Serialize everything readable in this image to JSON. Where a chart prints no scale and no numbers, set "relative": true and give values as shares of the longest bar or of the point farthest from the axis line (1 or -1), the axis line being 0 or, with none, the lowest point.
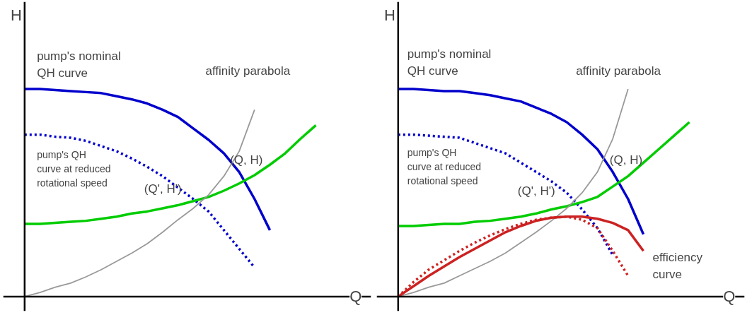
{
  "chart_data": [
    {
      "type": "line",
      "relative": true,
      "xlabel": "Q",
      "ylabel": "H",
      "grid": false,
      "tick_labels": false,
      "marker": "none",
      "categories": [
        null,
        null,
        null,
        null,
        null,
        null,
        null,
        null,
        null,
        null,
        null,
        null,
        null,
        null,
        null,
        null,
        null,
        null,
        null,
        null,
        null
      ],
      "series": [
        {
          "color": "#0000cc",
          "line_style": "solid",
          "values": [
            1,
            1,
            0.995,
            0.99,
            0.985,
            0.98,
            0.965,
            0.95,
            0.93,
            0.9,
            0.865,
            0.81,
            0.755,
            0.69,
            0.6,
            0.47,
            0.32,
            null,
            null,
            null,
            null
          ]
        },
        {
          "color": "#0000cc",
          "line_style": "dotted",
          "values": [
            0.78,
            0.78,
            0.77,
            0.765,
            0.75,
            0.725,
            0.7,
            0.665,
            0.625,
            0.58,
            0.525,
            0.47,
            0.41,
            0.32,
            0.23,
            0.14,
            null,
            null,
            null,
            null,
            null
          ]
        },
        {
          "color": "#00cc00",
          "line_style": "solid",
          "values": [
            0.35,
            0.35,
            0.355,
            0.36,
            0.365,
            0.375,
            0.385,
            0.4,
            0.41,
            0.425,
            0.44,
            0.46,
            0.48,
            0.51,
            0.545,
            0.585,
            0.635,
            0.69,
            0.76,
            0.825,
            null
          ]
        },
        {
          "color": "#999999",
          "line_style": "solid",
          "values": [
            0,
            0.02,
            0.045,
            0.065,
            0.095,
            0.13,
            0.17,
            0.21,
            0.255,
            0.31,
            0.37,
            0.425,
            0.49,
            0.58,
            0.7,
            0.9,
            null,
            null,
            null,
            null,
            null
          ]
        }
      ],
      "annotations": [
        "pump's nominal\nQH curve",
        "affinity parabola",
        "pump's QH\ncurve at reduced\nrotational speed",
        "(Q, H)",
        "(Q', H')"
      ]
    },
    {
      "type": "line",
      "relative": true,
      "xlabel": "Q",
      "ylabel": "H",
      "grid": false,
      "tick_labels": false,
      "marker": "none",
      "categories": [
        null,
        null,
        null,
        null,
        null,
        null,
        null,
        null,
        null,
        null,
        null,
        null,
        null,
        null,
        null,
        null,
        null,
        null,
        null,
        null,
        null
      ],
      "series": [
        {
          "color": "#0000cc",
          "line_style": "solid",
          "values": [
            1,
            1,
            0.995,
            0.99,
            0.99,
            0.98,
            0.97,
            0.955,
            0.94,
            0.91,
            0.88,
            0.84,
            0.78,
            0.71,
            0.6,
            0.47,
            0.3,
            null,
            null,
            null,
            null
          ]
        },
        {
          "color": "#0000cc",
          "line_style": "dotted",
          "values": [
            0.78,
            0.78,
            0.775,
            0.77,
            0.765,
            0.74,
            0.715,
            0.69,
            0.645,
            0.6,
            0.555,
            0.5,
            0.42,
            0.33,
            0.2,
            null,
            null,
            null,
            null,
            null,
            null
          ]
        },
        {
          "color": "#00cc00",
          "line_style": "solid",
          "values": [
            0.34,
            0.34,
            0.345,
            0.35,
            0.35,
            0.36,
            0.365,
            0.375,
            0.385,
            0.4,
            0.42,
            0.435,
            0.455,
            0.48,
            0.53,
            0.58,
            0.645,
            0.71,
            0.775,
            0.84,
            null
          ]
        },
        {
          "color": "#999999",
          "line_style": "solid",
          "values": [
            0,
            0.02,
            0.045,
            0.065,
            0.1,
            0.135,
            0.17,
            0.21,
            0.26,
            0.31,
            0.365,
            0.425,
            0.5,
            0.6,
            0.76,
            1,
            null,
            null,
            null,
            null,
            null
          ]
        },
        {
          "color": "#cc2222",
          "line_style": "solid",
          "values": [
            0,
            0.05,
            0.1,
            0.145,
            0.19,
            0.23,
            0.27,
            0.31,
            0.34,
            0.365,
            0.38,
            0.385,
            0.385,
            0.375,
            0.355,
            0.32,
            0.22,
            null,
            null,
            null,
            null
          ]
        },
        {
          "color": "#cc2222",
          "line_style": "dotted",
          "values": [
            0,
            0.07,
            0.13,
            0.175,
            0.22,
            0.26,
            0.295,
            0.325,
            0.35,
            0.37,
            0.38,
            0.385,
            0.37,
            0.33,
            0.22,
            0.1,
            null,
            null,
            null,
            null,
            null
          ]
        }
      ],
      "annotations": [
        "pump's nominal\nQH curve",
        "affinity parabola",
        "pump's QH\ncurve at reduced\nrotational speed",
        "(Q, H)",
        "(Q', H')",
        "efficiency\ncurve"
      ]
    }
  ]
}
